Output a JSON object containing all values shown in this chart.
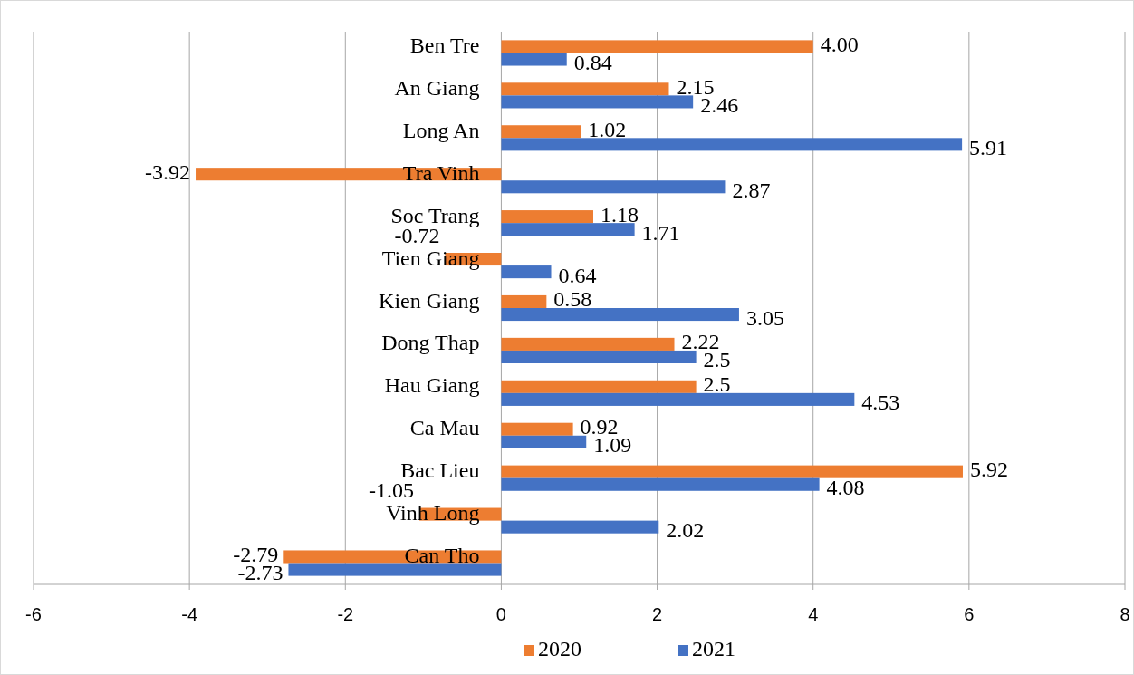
{
  "chart_data": {
    "type": "bar",
    "orientation": "horizontal",
    "categories": [
      "Ben Tre",
      "An Giang",
      "Long An",
      "Tra Vinh",
      "Soc Trang",
      "Tien Giang",
      "Kien Giang",
      "Dong Thap",
      "Hau Giang",
      "Ca Mau",
      "Bac Lieu",
      "Vinh Long",
      "Can Tho"
    ],
    "series": [
      {
        "name": "2020",
        "color": "#ed7d31",
        "values": [
          4.0,
          2.15,
          1.02,
          -3.92,
          1.18,
          -0.72,
          0.58,
          2.22,
          2.5,
          0.92,
          5.92,
          -1.05,
          -2.79
        ],
        "value_labels": [
          "4.00",
          "2.15",
          "1.02",
          "-3.92",
          "1.18",
          "-0.72",
          "0.58",
          "2.22",
          "2.5",
          "0.92",
          "5.92",
          "-1.05",
          "-2.79"
        ]
      },
      {
        "name": "2021",
        "color": "#4472c4",
        "values": [
          0.84,
          2.46,
          5.91,
          2.87,
          1.71,
          0.64,
          3.05,
          2.5,
          4.53,
          1.09,
          4.08,
          2.02,
          -2.73
        ],
        "value_labels": [
          "0.84",
          "2.46",
          "5.91",
          "2.87",
          "1.71",
          "0.64",
          "3.05",
          "2.5",
          "4.53",
          "1.09",
          "4.08",
          "2.02",
          "-2.73"
        ]
      }
    ],
    "xlim": [
      -6,
      8
    ],
    "xticks": [
      -6,
      -4,
      -2,
      0,
      2,
      4,
      6,
      8
    ],
    "grid": "x",
    "legend": "bottom"
  }
}
